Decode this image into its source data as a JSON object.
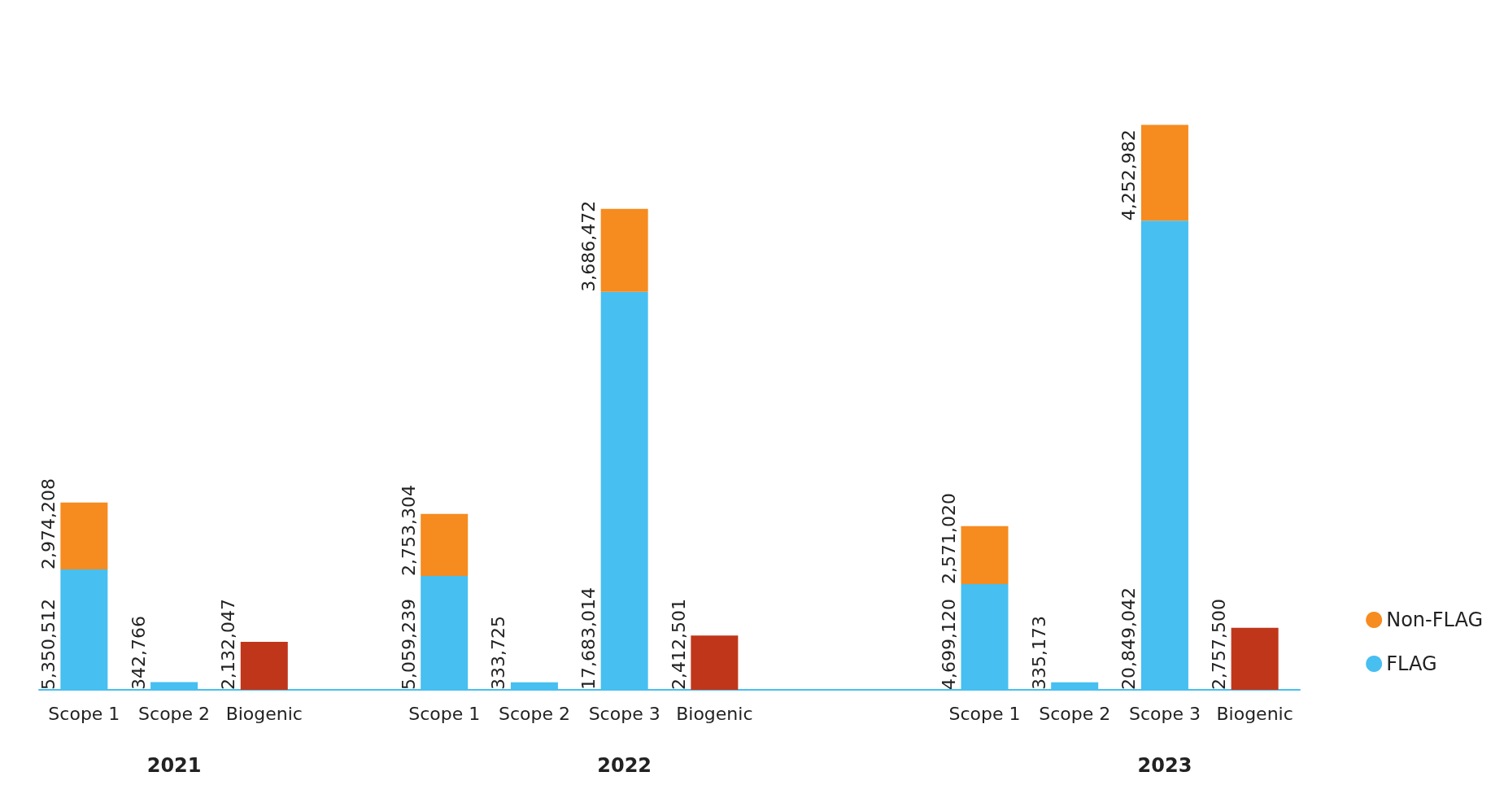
{
  "chart_data": {
    "type": "bar",
    "stacked": true,
    "legend": "bottom right",
    "grid": false,
    "tick_labels": "x",
    "categories": [
      "Scope 1",
      "Scope 2",
      "Biogenic",
      null,
      "Scope 1",
      "Scope 2",
      "Scope 3",
      "Biogenic",
      null,
      null,
      "Scope 1",
      "Scope 2",
      "Scope 3",
      "Biogenic"
    ],
    "series": [
      {
        "name": "FLAG",
        "color": "#47bff0",
        "values": [
          5350512,
          342766,
          null,
          null,
          5059239,
          333725,
          17683014,
          null,
          null,
          null,
          4699120,
          335173,
          20849042,
          null
        ],
        "value_labels": [
          "5,350,512",
          "342,766",
          null,
          null,
          "5,059,239",
          "333,725",
          "17,683,014",
          null,
          null,
          null,
          "4,699,120",
          "335,173",
          "20,849,042",
          null
        ]
      },
      {
        "name": "Non-FLAG",
        "color": "#f68b1f",
        "values": [
          2974208,
          null,
          null,
          null,
          2753304,
          null,
          3686472,
          null,
          null,
          null,
          2571020,
          null,
          4252982,
          null
        ],
        "value_labels": [
          "2,974,208",
          null,
          null,
          null,
          "2,753,304",
          null,
          "3,686,472",
          null,
          null,
          null,
          "2,571,020",
          null,
          "4,252,982",
          null
        ]
      },
      {
        "color": "#c0361a",
        "values": [
          null,
          null,
          2132047,
          null,
          null,
          null,
          null,
          2412501,
          null,
          null,
          null,
          null,
          null,
          2757500
        ],
        "value_labels": [
          null,
          null,
          "2,132,047",
          null,
          null,
          null,
          null,
          "2,412,501",
          null,
          null,
          null,
          null,
          null,
          "2,757,500"
        ]
      }
    ],
    "annotations": [
      "2021",
      "2022",
      "2023"
    ]
  }
}
